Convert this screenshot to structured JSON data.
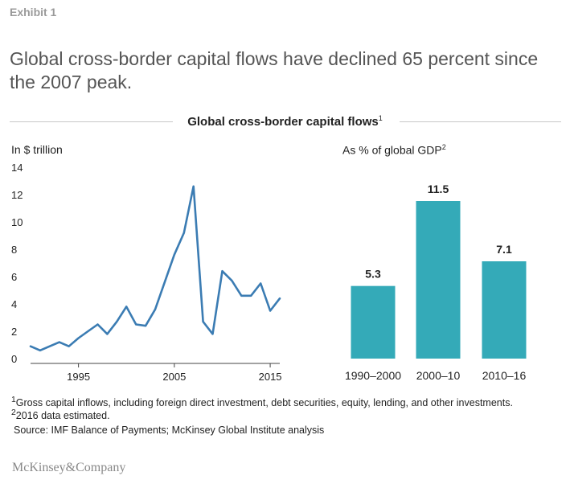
{
  "exhibit_label": "Exhibit 1",
  "headline": "Global cross-border capital flows have declined 65 percent since the 2007 peak.",
  "section": {
    "title": "Global cross-border capital flows",
    "title_note": "1"
  },
  "colors": {
    "line": "#3b7cb3",
    "bar": "#34aab8",
    "axis": "#444444",
    "grid_rule": "#c8c8c8"
  },
  "chart_data": [
    {
      "type": "line",
      "unit_label": "In $ trillion",
      "x": [
        1990,
        1991,
        1992,
        1993,
        1994,
        1995,
        1996,
        1997,
        1998,
        1999,
        2000,
        2001,
        2002,
        2003,
        2004,
        2005,
        2006,
        2007,
        2008,
        2009,
        2010,
        2011,
        2012,
        2013,
        2014,
        2015,
        2016
      ],
      "series": [
        {
          "values": [
            0.9,
            0.6,
            0.9,
            1.2,
            0.9,
            1.5,
            2.0,
            2.5,
            1.8,
            2.7,
            3.8,
            2.5,
            2.4,
            3.6,
            5.6,
            7.6,
            9.2,
            12.6,
            2.7,
            1.8,
            6.4,
            5.7,
            4.6,
            4.6,
            5.5,
            3.5,
            4.4
          ]
        }
      ],
      "xlim": [
        1990,
        2016
      ],
      "ylim": [
        0,
        14
      ],
      "x_ticks": [
        1995,
        2005,
        2015
      ],
      "x_tick_labels": [
        "1995",
        "2005",
        "2015"
      ],
      "y_ticks": [
        0,
        2,
        4,
        6,
        8,
        10,
        12,
        14
      ],
      "y_tick_labels": [
        "0",
        "2",
        "4",
        "6",
        "8",
        "10",
        "12",
        "14"
      ]
    },
    {
      "type": "bar",
      "unit_label": "As % of global GDP",
      "unit_note": "2",
      "categories": [
        "1990–2000",
        "2000–10",
        "2010–16"
      ],
      "values": [
        5.3,
        11.5,
        7.1
      ],
      "value_labels": [
        "5.3",
        "11.5",
        "7.1"
      ],
      "ylim": [
        0,
        11.5
      ]
    }
  ],
  "footnotes": [
    {
      "marker": "1",
      "text": "Gross capital inflows, including foreign direct investment, debt securities, equity, lending, and other investments."
    },
    {
      "marker": "2",
      "text": "2016 data estimated."
    }
  ],
  "source": "Source: IMF Balance of Payments; McKinsey Global Institute analysis",
  "logo": "McKinsey&Company"
}
